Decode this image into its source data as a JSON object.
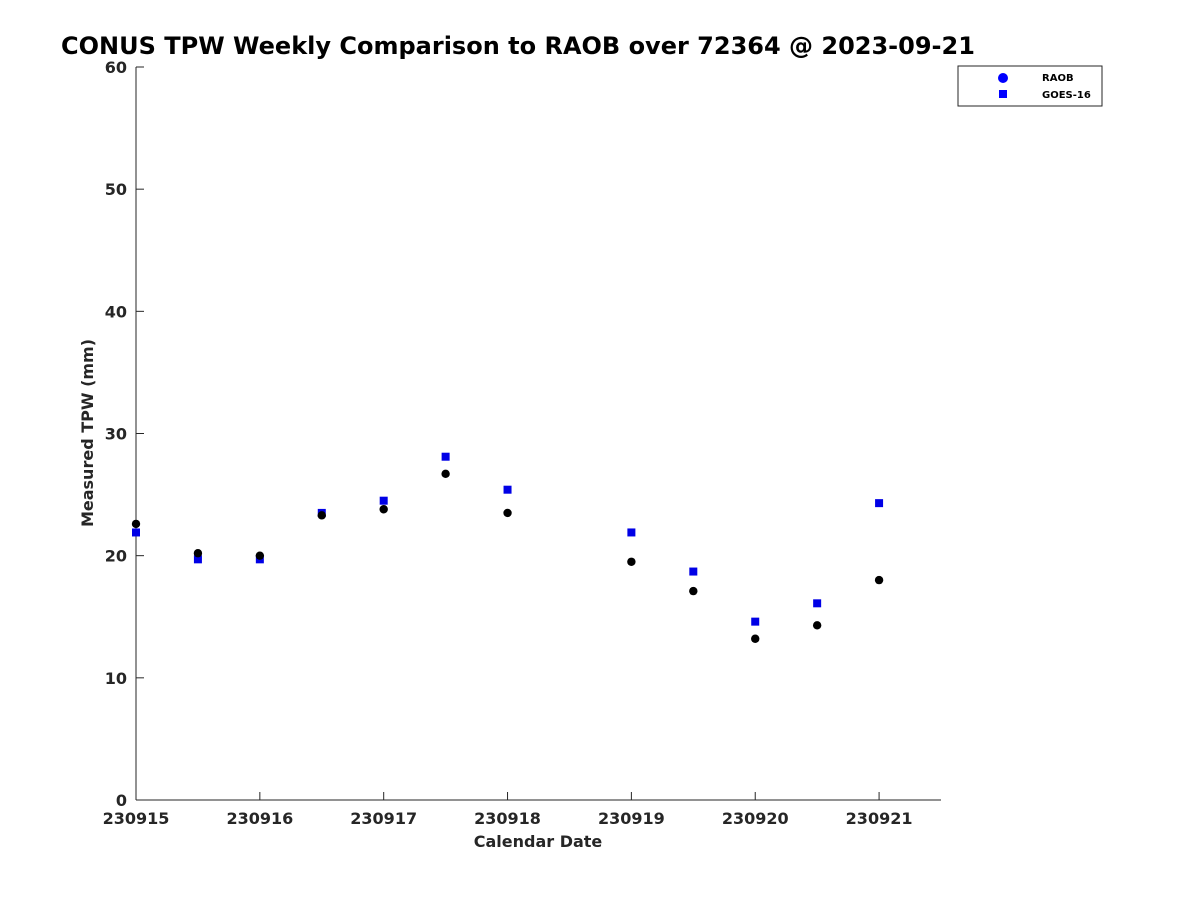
{
  "chart_data": {
    "type": "scatter",
    "title": "CONUS TPW Weekly Comparison to RAOB over 72364 @ 2023-09-21",
    "xlabel": "Calendar Date",
    "ylabel": "Measured TPW (mm)",
    "xlim": [
      230915,
      230921.5
    ],
    "ylim": [
      0,
      60
    ],
    "x_ticks": [
      230915,
      230916,
      230917,
      230918,
      230919,
      230920,
      230921
    ],
    "x_tick_labels": [
      "230915",
      "230916",
      "230917",
      "230918",
      "230919",
      "230920",
      "230921"
    ],
    "y_ticks": [
      0,
      10,
      20,
      30,
      40,
      50,
      60
    ],
    "y_tick_labels": [
      "0",
      "10",
      "20",
      "30",
      "40",
      "50",
      "60"
    ],
    "grid": false,
    "legend_position": "top-right, outside plot",
    "series": [
      {
        "name": "RAOB",
        "marker": "circle",
        "color": "#000000",
        "legend_color": "#0000ff",
        "points": [
          {
            "x": 230915.0,
            "y": 22.6
          },
          {
            "x": 230915.5,
            "y": 20.2
          },
          {
            "x": 230916.0,
            "y": 20.0
          },
          {
            "x": 230916.5,
            "y": 23.3
          },
          {
            "x": 230917.0,
            "y": 23.8
          },
          {
            "x": 230917.5,
            "y": 26.7
          },
          {
            "x": 230918.0,
            "y": 23.5
          },
          {
            "x": 230919.0,
            "y": 19.5
          },
          {
            "x": 230919.5,
            "y": 17.1
          },
          {
            "x": 230920.0,
            "y": 13.2
          },
          {
            "x": 230920.5,
            "y": 14.3
          },
          {
            "x": 230921.0,
            "y": 18.0
          }
        ]
      },
      {
        "name": "GOES-16",
        "marker": "square",
        "color": "#0000e6",
        "legend_color": "#0000ff",
        "points": [
          {
            "x": 230915.0,
            "y": 21.9
          },
          {
            "x": 230915.5,
            "y": 19.7
          },
          {
            "x": 230916.0,
            "y": 19.7
          },
          {
            "x": 230916.5,
            "y": 23.5
          },
          {
            "x": 230917.0,
            "y": 24.5
          },
          {
            "x": 230917.5,
            "y": 28.1
          },
          {
            "x": 230918.0,
            "y": 25.4
          },
          {
            "x": 230919.0,
            "y": 21.9
          },
          {
            "x": 230919.5,
            "y": 18.7
          },
          {
            "x": 230920.0,
            "y": 14.6
          },
          {
            "x": 230920.5,
            "y": 16.1
          },
          {
            "x": 230921.0,
            "y": 24.3
          }
        ]
      }
    ]
  }
}
